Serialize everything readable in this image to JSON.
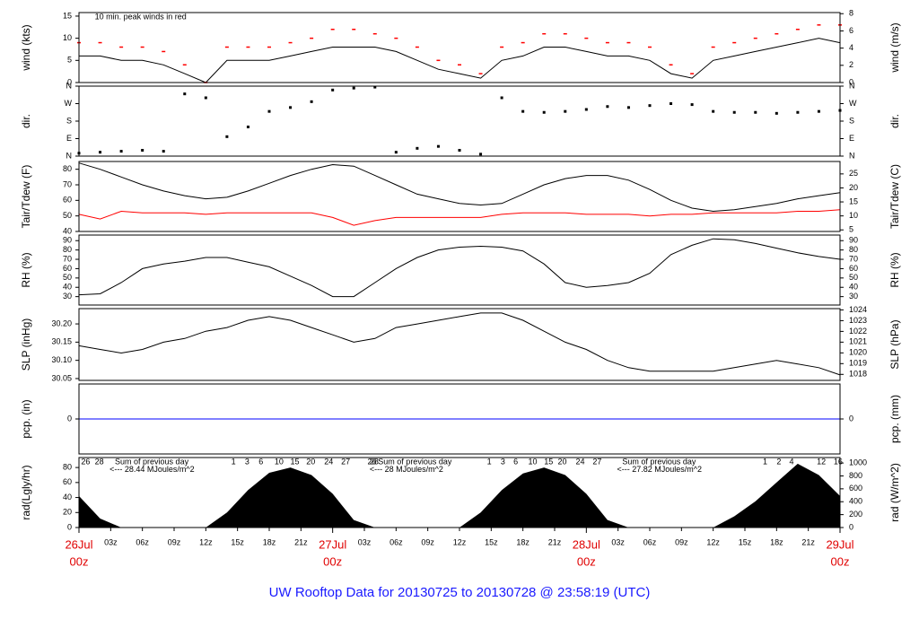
{
  "page_title": "UW Rooftop Data for 20130725  to  20130728 @ 23:58:19  (UTC)",
  "chart_data": [
    {
      "type": "line",
      "ylabel": "wind (kts)",
      "y2label": "wind (m/s)",
      "xlim": [
        0,
        72
      ],
      "ylim": [
        0,
        15.8
      ],
      "yticks": [
        0,
        5,
        10,
        15
      ],
      "y2lim": [
        0,
        8.13
      ],
      "y2ticks": [
        0,
        2,
        4,
        6,
        8
      ],
      "annotations": [
        {
          "text": "10 min. peak winds in red",
          "x": 1.5,
          "y": 14.8,
          "color": "#e00000"
        }
      ],
      "x": [
        0,
        2,
        4,
        6,
        8,
        10,
        12,
        14,
        16,
        18,
        20,
        22,
        24,
        26,
        28,
        30,
        32,
        34,
        36,
        38,
        40,
        42,
        44,
        46,
        48,
        50,
        52,
        54,
        56,
        58,
        60,
        62,
        64,
        66,
        68,
        70,
        72
      ],
      "series": [
        {
          "name": "wind",
          "color": "#000000",
          "marker": "line",
          "values": [
            6,
            6,
            5,
            5,
            4,
            2,
            0,
            5,
            5,
            5,
            6,
            7,
            8,
            8,
            8,
            7,
            5,
            3,
            2,
            1,
            5,
            6,
            8,
            8,
            7,
            6,
            6,
            5,
            2,
            1,
            5,
            6,
            7,
            8,
            9,
            10,
            9
          ]
        },
        {
          "name": "peak",
          "color": "#ff0000",
          "marker": "dash",
          "values": [
            9,
            9,
            8,
            8,
            7,
            4,
            0,
            8,
            8,
            8,
            9,
            10,
            12,
            12,
            11,
            10,
            8,
            5,
            4,
            2,
            8,
            9,
            11,
            11,
            10,
            9,
            9,
            8,
            4,
            2,
            8,
            9,
            10,
            11,
            12,
            13,
            13
          ]
        }
      ]
    },
    {
      "type": "scatter",
      "ylabel": "dir.",
      "y2label": "dir.",
      "xlim": [
        0,
        72
      ],
      "ylim": [
        0,
        360
      ],
      "yticks": [
        {
          "value": 0,
          "label": "N"
        },
        {
          "value": 90,
          "label": "E"
        },
        {
          "value": 180,
          "label": "S"
        },
        {
          "value": 270,
          "label": "W"
        },
        {
          "value": 360,
          "label": "N"
        }
      ],
      "y2lim": [
        0,
        360
      ],
      "y2ticks": [
        {
          "value": 0,
          "label": "N"
        },
        {
          "value": 90,
          "label": "E"
        },
        {
          "value": 180,
          "label": "S"
        },
        {
          "value": 270,
          "label": "W"
        },
        {
          "value": 360,
          "label": "N"
        }
      ],
      "x": [
        0,
        2,
        4,
        6,
        8,
        10,
        12,
        14,
        16,
        18,
        20,
        22,
        24,
        26,
        28,
        30,
        32,
        34,
        36,
        38,
        40,
        42,
        44,
        46,
        48,
        50,
        52,
        54,
        56,
        58,
        60,
        62,
        64,
        66,
        68,
        70,
        72
      ],
      "series": [
        {
          "name": "direction",
          "color": "#000000",
          "values": [
            15,
            20,
            25,
            30,
            25,
            320,
            300,
            100,
            150,
            230,
            250,
            280,
            340,
            350,
            355,
            20,
            40,
            50,
            30,
            10,
            300,
            230,
            225,
            230,
            240,
            255,
            250,
            260,
            270,
            265,
            230,
            225,
            225,
            220,
            225,
            230,
            235
          ]
        }
      ]
    },
    {
      "type": "line",
      "ylabel": "Tair/Tdew (F)",
      "y2label": "Tair/Tdew (C)",
      "xlim": [
        0,
        72
      ],
      "ylim": [
        40,
        85
      ],
      "yticks": [
        40,
        50,
        60,
        70,
        80
      ],
      "y2lim": [
        4.44,
        29.44
      ],
      "y2ticks": [
        5,
        10,
        15,
        20,
        25
      ],
      "x": [
        0,
        2,
        4,
        6,
        8,
        10,
        12,
        14,
        16,
        18,
        20,
        22,
        24,
        26,
        28,
        30,
        32,
        34,
        36,
        38,
        40,
        42,
        44,
        46,
        48,
        50,
        52,
        54,
        56,
        58,
        60,
        62,
        64,
        66,
        68,
        70,
        72
      ],
      "series": [
        {
          "name": "Tair",
          "color": "#000000",
          "marker": "line",
          "values": [
            84,
            80,
            75,
            70,
            66,
            63,
            61,
            62,
            66,
            71,
            76,
            80,
            83,
            82,
            76,
            70,
            64,
            61,
            58,
            57,
            58,
            64,
            70,
            74,
            76,
            76,
            73,
            67,
            60,
            55,
            53,
            54,
            56,
            58,
            61,
            63,
            65
          ]
        },
        {
          "name": "Tdew",
          "color": "#ff0000",
          "marker": "line",
          "values": [
            51,
            48,
            53,
            52,
            52,
            52,
            51,
            52,
            52,
            52,
            52,
            52,
            49,
            44,
            47,
            49,
            49,
            49,
            49,
            49,
            51,
            52,
            52,
            52,
            51,
            51,
            51,
            50,
            51,
            51,
            52,
            52,
            52,
            52,
            53,
            53,
            54
          ]
        }
      ]
    },
    {
      "type": "line",
      "ylabel": "RH (%)",
      "y2label": "RH (%)",
      "xlim": [
        0,
        72
      ],
      "ylim": [
        21,
        96
      ],
      "yticks": [
        30,
        40,
        50,
        60,
        70,
        80,
        90
      ],
      "y2lim": [
        21,
        96
      ],
      "y2ticks": [
        30,
        40,
        50,
        60,
        70,
        80,
        90
      ],
      "x": [
        0,
        2,
        4,
        6,
        8,
        10,
        12,
        14,
        16,
        18,
        20,
        22,
        24,
        26,
        28,
        30,
        32,
        34,
        36,
        38,
        40,
        42,
        44,
        46,
        48,
        50,
        52,
        54,
        56,
        58,
        60,
        62,
        64,
        66,
        68,
        70,
        72
      ],
      "series": [
        {
          "name": "RH",
          "color": "#000000",
          "marker": "line",
          "values": [
            32,
            33,
            45,
            60,
            65,
            68,
            72,
            72,
            67,
            62,
            52,
            42,
            30,
            30,
            45,
            60,
            72,
            80,
            83,
            84,
            83,
            79,
            65,
            45,
            40,
            42,
            45,
            55,
            75,
            85,
            92,
            91,
            87,
            82,
            77,
            73,
            70
          ]
        }
      ]
    },
    {
      "type": "line",
      "ylabel": "SLP (inHg)",
      "y2label": "SLP (hPa)",
      "xlim": [
        0,
        72
      ],
      "ylim": [
        30.045,
        30.242
      ],
      "yticks": [
        30.05,
        {
          "value": 30.1,
          "label": "30.10"
        },
        30.15,
        {
          "value": 30.2,
          "label": "30.20"
        }
      ],
      "y2lim": [
        1017.44,
        1024.12
      ],
      "y2ticks": [
        1018,
        1019,
        1020,
        1021,
        1022,
        1023,
        1024
      ],
      "x": [
        0,
        2,
        4,
        6,
        8,
        10,
        12,
        14,
        16,
        18,
        20,
        22,
        24,
        26,
        28,
        30,
        32,
        34,
        36,
        38,
        40,
        42,
        44,
        46,
        48,
        50,
        52,
        54,
        56,
        58,
        60,
        62,
        64,
        66,
        68,
        70,
        72
      ],
      "series": [
        {
          "name": "SLP",
          "color": "#000000",
          "marker": "line",
          "values": [
            30.14,
            30.13,
            30.12,
            30.13,
            30.15,
            30.16,
            30.18,
            30.19,
            30.21,
            30.22,
            30.21,
            30.19,
            30.17,
            30.15,
            30.16,
            30.19,
            30.2,
            30.21,
            30.22,
            30.23,
            30.23,
            30.21,
            30.18,
            30.15,
            30.13,
            30.1,
            30.08,
            30.07,
            30.07,
            30.07,
            30.07,
            30.08,
            30.09,
            30.1,
            30.09,
            30.08,
            30.06
          ]
        }
      ]
    },
    {
      "type": "line",
      "ylabel": "pcp. (in)",
      "y2label": "pcp. (mm)",
      "xlim": [
        0,
        72
      ],
      "ylim": [
        -1,
        1
      ],
      "yticks": [
        0
      ],
      "y2lim": [
        -1,
        1
      ],
      "y2ticks": [
        0
      ],
      "x": [
        0,
        2,
        4,
        6,
        8,
        10,
        12,
        14,
        16,
        18,
        20,
        22,
        24,
        26,
        28,
        30,
        32,
        34,
        36,
        38,
        40,
        42,
        44,
        46,
        48,
        50,
        52,
        54,
        56,
        58,
        60,
        62,
        64,
        66,
        68,
        70,
        72
      ],
      "series": [
        {
          "name": "pcp",
          "color": "#0000ff",
          "marker": "line",
          "values": [
            0,
            0,
            0,
            0,
            0,
            0,
            0,
            0,
            0,
            0,
            0,
            0,
            0,
            0,
            0,
            0,
            0,
            0,
            0,
            0,
            0,
            0,
            0,
            0,
            0,
            0,
            0,
            0,
            0,
            0,
            0,
            0,
            0,
            0,
            0,
            0,
            0
          ]
        }
      ]
    },
    {
      "type": "area",
      "ylabel": "rad(Lgly/hr)",
      "y2label": "rad (W/m^2)",
      "xlim": [
        0,
        72
      ],
      "ylim": [
        0,
        93.3
      ],
      "yticks": [
        0,
        20,
        40,
        60,
        80
      ],
      "y2lim": [
        0,
        1085
      ],
      "y2ticks": [
        0,
        200,
        400,
        600,
        800,
        1000
      ],
      "xticks": [
        {
          "value": 3,
          "label": "03z"
        },
        {
          "value": 6,
          "label": "06z"
        },
        {
          "value": 9,
          "label": "09z"
        },
        {
          "value": 12,
          "label": "12z"
        },
        {
          "value": 15,
          "label": "15z"
        },
        {
          "value": 18,
          "label": "18z"
        },
        {
          "value": 21,
          "label": "21z"
        },
        {
          "value": 27,
          "label": "03z"
        },
        {
          "value": 30,
          "label": "06z"
        },
        {
          "value": 33,
          "label": "09z"
        },
        {
          "value": 36,
          "label": "12z"
        },
        {
          "value": 39,
          "label": "15z"
        },
        {
          "value": 42,
          "label": "18z"
        },
        {
          "value": 45,
          "label": "21z"
        },
        {
          "value": 51,
          "label": "03z"
        },
        {
          "value": 54,
          "label": "06z"
        },
        {
          "value": 57,
          "label": "09z"
        },
        {
          "value": 60,
          "label": "12z"
        },
        {
          "value": 63,
          "label": "15z"
        },
        {
          "value": 66,
          "label": "18z"
        },
        {
          "value": 69,
          "label": "21z"
        }
      ],
      "date_ticks": [
        {
          "value": 0,
          "label": "26Jul",
          "sublabel": "00z"
        },
        {
          "value": 24,
          "label": "27Jul",
          "sublabel": "00z"
        },
        {
          "value": 48,
          "label": "28Jul",
          "sublabel": "00z"
        },
        {
          "value": 72,
          "label": "29Jul",
          "sublabel": "00z"
        }
      ],
      "annotations": [
        {
          "text": "26",
          "x": 0.2,
          "y": 87,
          "color": "#a020f0"
        },
        {
          "text": "28",
          "x": 1.5,
          "y": 87,
          "color": "#a020f0"
        },
        {
          "text": "Sum of previous day",
          "x": 3.4,
          "y": 87,
          "color": "#a020f0"
        },
        {
          "text": "<--- 28.44 MJoules/m^2",
          "x": 2.9,
          "y": 77,
          "color": "#a020f0"
        },
        {
          "text": "1",
          "x": 14.4,
          "y": 87,
          "color": "#a020f0"
        },
        {
          "text": "3",
          "x": 15.7,
          "y": 87,
          "color": "#a020f0"
        },
        {
          "text": "6",
          "x": 17,
          "y": 87,
          "color": "#a020f0"
        },
        {
          "text": "10",
          "x": 18.5,
          "y": 87,
          "color": "#a020f0"
        },
        {
          "text": "15",
          "x": 20,
          "y": 87,
          "color": "#a020f0"
        },
        {
          "text": "20",
          "x": 21.5,
          "y": 87,
          "color": "#a020f0"
        },
        {
          "text": "24",
          "x": 23.2,
          "y": 87,
          "color": "#a020f0"
        },
        {
          "text": "27",
          "x": 24.8,
          "y": 87,
          "color": "#a020f0"
        },
        {
          "text": "26",
          "x": 27.3,
          "y": 87,
          "color": "#a020f0"
        },
        {
          "text": "28",
          "x": 27.5,
          "y": 87,
          "color": "#a020f0"
        },
        {
          "text": "Sum of previous day",
          "x": 28.3,
          "y": 87,
          "color": "#a020f0"
        },
        {
          "text": "<--- 28 MJoules/m^2",
          "x": 27.5,
          "y": 77,
          "color": "#a020f0"
        },
        {
          "text": "1",
          "x": 38.6,
          "y": 87,
          "color": "#a020f0"
        },
        {
          "text": "3",
          "x": 39.9,
          "y": 87,
          "color": "#a020f0"
        },
        {
          "text": "6",
          "x": 41.1,
          "y": 87,
          "color": "#a020f0"
        },
        {
          "text": "10",
          "x": 42.5,
          "y": 87,
          "color": "#a020f0"
        },
        {
          "text": "15",
          "x": 44,
          "y": 87,
          "color": "#a020f0"
        },
        {
          "text": "20",
          "x": 45.3,
          "y": 87,
          "color": "#a020f0"
        },
        {
          "text": "24",
          "x": 47,
          "y": 87,
          "color": "#a020f0"
        },
        {
          "text": "27",
          "x": 48.6,
          "y": 87,
          "color": "#a020f0"
        },
        {
          "text": "Sum of previous day",
          "x": 51.4,
          "y": 87,
          "color": "#a020f0"
        },
        {
          "text": "<--- 27.82 MJoules/m^2",
          "x": 50.9,
          "y": 77,
          "color": "#a020f0"
        },
        {
          "text": "1",
          "x": 64.7,
          "y": 87,
          "color": "#a020f0"
        },
        {
          "text": "2",
          "x": 66,
          "y": 87,
          "color": "#a020f0"
        },
        {
          "text": "4",
          "x": 67.2,
          "y": 87,
          "color": "#a020f0"
        },
        {
          "text": "12",
          "x": 69.8,
          "y": 87,
          "color": "#a020f0"
        },
        {
          "text": "16",
          "x": 71.4,
          "y": 87,
          "color": "#a020f0"
        }
      ],
      "x": [
        0,
        2,
        4,
        6,
        8,
        10,
        12,
        14,
        16,
        18,
        20,
        22,
        24,
        26,
        28,
        30,
        32,
        34,
        36,
        38,
        40,
        42,
        44,
        46,
        48,
        50,
        52,
        54,
        56,
        58,
        60,
        62,
        64,
        66,
        68,
        70,
        72
      ],
      "series": [
        {
          "name": "radiation",
          "color": "#000000",
          "values": [
            42,
            12,
            0,
            0,
            0,
            0,
            0,
            20,
            50,
            73,
            80,
            70,
            45,
            10,
            0,
            0,
            0,
            0,
            0,
            20,
            50,
            72,
            80,
            70,
            45,
            10,
            0,
            0,
            0,
            0,
            0,
            15,
            35,
            60,
            85,
            70,
            42
          ]
        }
      ]
    }
  ]
}
